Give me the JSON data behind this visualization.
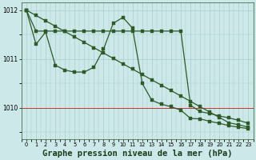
{
  "background_color": "#cce8e8",
  "line_color": "#2d5a27",
  "title": "Graphe pression niveau de la mer (hPa)",
  "title_fontsize": 7.5,
  "xlim": [
    -0.5,
    23.5
  ],
  "ylim": [
    1009.35,
    1012.15
  ],
  "yticks": [
    1010,
    1011,
    1012
  ],
  "xticks": [
    0,
    1,
    2,
    3,
    4,
    5,
    6,
    7,
    8,
    9,
    10,
    11,
    12,
    13,
    14,
    15,
    16,
    17,
    18,
    19,
    20,
    21,
    22,
    23
  ],
  "hours": [
    0,
    1,
    2,
    3,
    4,
    5,
    6,
    7,
    8,
    9,
    10,
    11,
    12,
    13,
    14,
    15,
    16,
    17,
    18,
    19,
    20,
    21,
    22,
    23
  ],
  "line_A": [
    1012.0,
    1011.57,
    1011.57,
    1011.57,
    1011.57,
    1011.57,
    1011.57,
    1011.57,
    1011.57,
    1011.57,
    1011.57,
    1011.57,
    1011.57,
    1011.57,
    1011.57,
    1011.57,
    1011.57,
    1010.05,
    1009.92,
    1009.88,
    1009.83,
    1009.79,
    1009.74,
    1009.68
  ],
  "line_B": [
    1012.0,
    1011.3,
    1011.55,
    1010.87,
    1010.77,
    1010.73,
    1010.73,
    1010.83,
    1011.2,
    1011.73,
    1011.85,
    1011.63,
    1010.5,
    1010.15,
    1010.07,
    1010.02,
    1009.95,
    1009.78,
    1009.77,
    1009.72,
    1009.68,
    1009.63,
    1009.6,
    1009.57
  ],
  "line_C": [
    1012.0,
    1011.89,
    1011.78,
    1011.67,
    1011.56,
    1011.45,
    1011.34,
    1011.23,
    1011.12,
    1011.01,
    1010.9,
    1010.79,
    1010.68,
    1010.57,
    1010.46,
    1010.35,
    1010.24,
    1010.13,
    1010.02,
    1009.91,
    1009.8,
    1009.69,
    1009.65,
    1009.6
  ],
  "red_line_y": 1010.0
}
